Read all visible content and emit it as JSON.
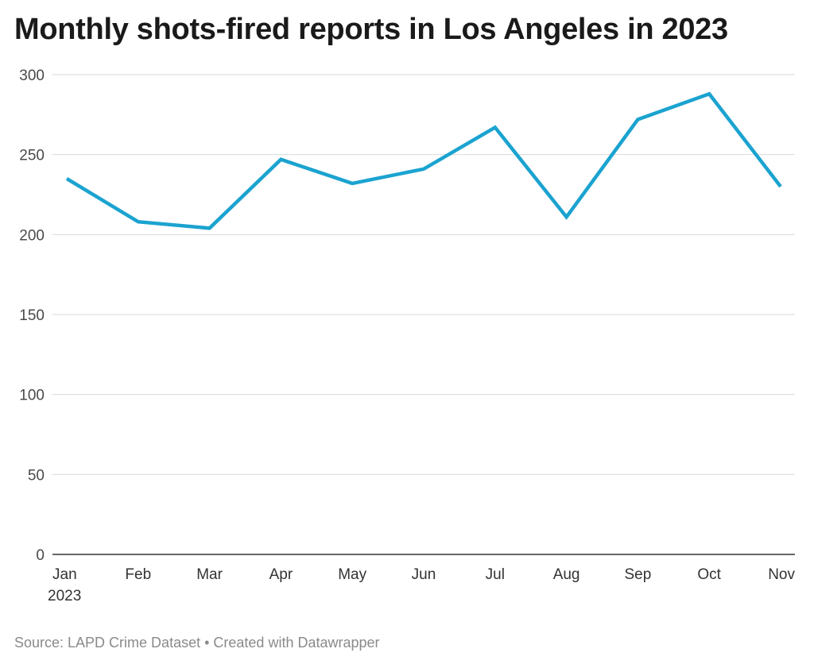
{
  "title": "Monthly shots-fired reports in Los Angeles in 2023",
  "footer": {
    "source": "Source: LAPD Crime Dataset",
    "separator": " • ",
    "credit": "Created with Datawrapper"
  },
  "chart_data": {
    "type": "line",
    "title": "Monthly shots-fired reports in Los Angeles in 2023",
    "categories": [
      "Jan",
      "Feb",
      "Mar",
      "Apr",
      "May",
      "Jun",
      "Jul",
      "Aug",
      "Sep",
      "Oct",
      "Nov"
    ],
    "first_category_sublabel": "2023",
    "series": [
      {
        "values": [
          235,
          208,
          204,
          247,
          232,
          241,
          267,
          211,
          272,
          288,
          230
        ],
        "color": "#1ba3d0"
      }
    ],
    "ylim": [
      0,
      300
    ],
    "yticks": [
      0,
      50,
      100,
      150,
      200,
      250,
      300
    ],
    "grid": true,
    "legend": "none",
    "xlabel": "",
    "ylabel": ""
  }
}
